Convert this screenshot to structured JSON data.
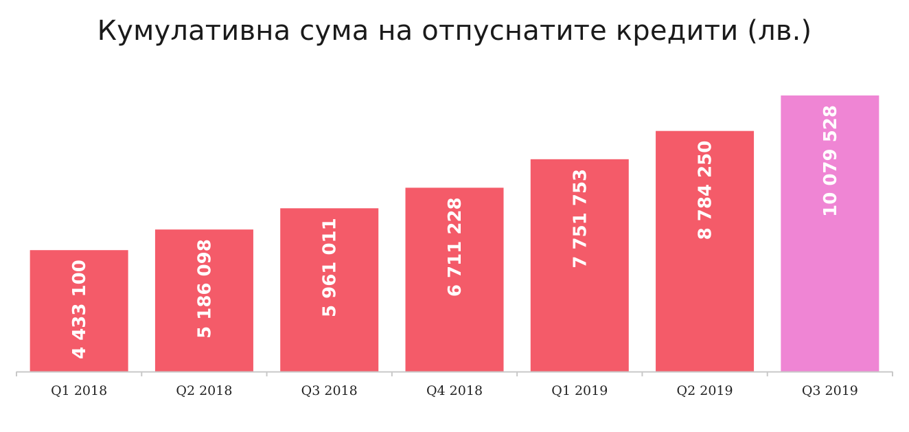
{
  "chart_data": {
    "type": "bar",
    "title": "Кумулативна сума на отпуснатите кредити (лв.)",
    "categories": [
      "Q1 2018",
      "Q2 2018",
      "Q3 2018",
      "Q4 2018",
      "Q1 2019",
      "Q2 2019",
      "Q3 2019"
    ],
    "values": [
      4433100,
      5186098,
      5961011,
      6711228,
      7751753,
      8784250,
      10079528
    ],
    "value_labels": [
      "4 433 100",
      "5 186 098",
      "5 961 011",
      "6 711 228",
      "7 751 753",
      "8 784 250",
      "10 079 528"
    ],
    "bar_colors": [
      "#f45b69",
      "#f45b69",
      "#f45b69",
      "#f45b69",
      "#f45b69",
      "#f45b69",
      "#ef85d4"
    ],
    "ylim": [
      0,
      11000000
    ],
    "grid": false,
    "legend": "none"
  },
  "colors": {
    "primary_bar": "#f45b69",
    "highlight_bar": "#ef85d4",
    "axis": "#c8c8c8"
  }
}
